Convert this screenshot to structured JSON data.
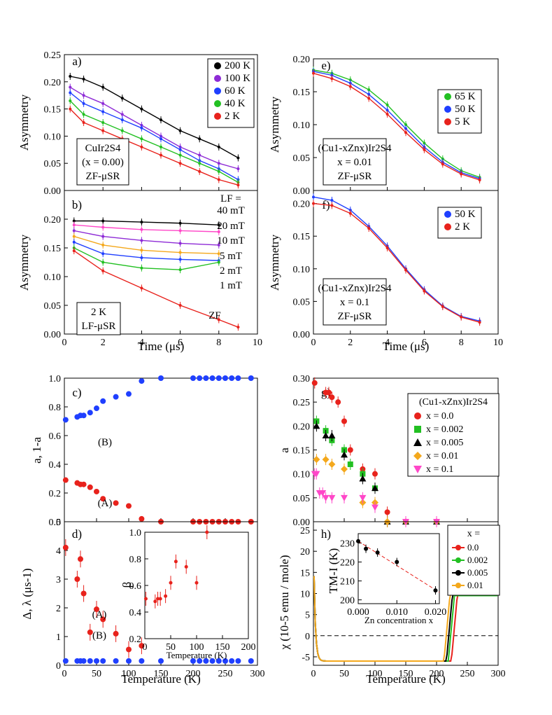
{
  "chart_data": [
    {
      "panel": "a",
      "type": "scatter",
      "xlabel": "",
      "ylabel": "Asymmetry",
      "xlim": [
        0,
        10
      ],
      "ylim": [
        0,
        0.25
      ],
      "xticks": [
        0,
        2,
        4,
        6,
        8,
        10
      ],
      "yticks": [
        0.0,
        0.05,
        0.1,
        0.15,
        0.2,
        0.25
      ],
      "annotation": [
        "CuIr2S4",
        "(x = 0.00)",
        "ZF-μSR"
      ],
      "legend_position": "top-right",
      "series": [
        {
          "name": "200 K",
          "color": "#000000",
          "x": [
            0.3,
            1,
            2,
            3,
            4,
            5,
            6,
            7,
            8,
            9
          ],
          "y": [
            0.21,
            0.205,
            0.19,
            0.17,
            0.15,
            0.13,
            0.11,
            0.095,
            0.08,
            0.06
          ]
        },
        {
          "name": "100 K",
          "color": "#8e2bd6",
          "x": [
            0.3,
            1,
            2,
            3,
            4,
            5,
            6,
            7,
            8,
            9
          ],
          "y": [
            0.19,
            0.175,
            0.16,
            0.14,
            0.12,
            0.1,
            0.08,
            0.065,
            0.05,
            0.04
          ]
        },
        {
          "name": "60 K",
          "color": "#1f3fff",
          "x": [
            0.3,
            1,
            2,
            3,
            4,
            5,
            6,
            7,
            8,
            9
          ],
          "y": [
            0.18,
            0.16,
            0.145,
            0.13,
            0.115,
            0.095,
            0.075,
            0.055,
            0.04,
            0.02
          ]
        },
        {
          "name": "40 K",
          "color": "#22c022",
          "x": [
            0.3,
            1,
            2,
            3,
            4,
            5,
            6,
            7,
            8,
            9
          ],
          "y": [
            0.165,
            0.14,
            0.125,
            0.11,
            0.095,
            0.08,
            0.065,
            0.05,
            0.035,
            0.015
          ]
        },
        {
          "name": "2 K",
          "color": "#e8221c",
          "x": [
            0.3,
            1,
            2,
            3,
            4,
            5,
            6,
            7,
            8,
            9
          ],
          "y": [
            0.15,
            0.125,
            0.11,
            0.095,
            0.08,
            0.065,
            0.05,
            0.035,
            0.02,
            0.01
          ]
        }
      ]
    },
    {
      "panel": "b",
      "type": "scatter",
      "xlabel": "Time (μs)",
      "ylabel": "Asymmetry",
      "xlim": [
        0,
        10
      ],
      "ylim": [
        0,
        0.25
      ],
      "xticks": [
        0,
        2,
        4,
        6,
        8,
        10
      ],
      "yticks": [
        0.0,
        0.05,
        0.1,
        0.15,
        0.2
      ],
      "annotation": [
        "2 K",
        "LF-μSR"
      ],
      "series": [
        {
          "name": "40 mT",
          "color": "#000000",
          "x": [
            0.5,
            2,
            4,
            6,
            8
          ],
          "y": [
            0.197,
            0.197,
            0.195,
            0.193,
            0.19
          ]
        },
        {
          "name": "20 mT",
          "color": "#ff47c8",
          "x": [
            0.5,
            2,
            4,
            6,
            8
          ],
          "y": [
            0.19,
            0.186,
            0.182,
            0.18,
            0.178
          ]
        },
        {
          "name": "10 mT",
          "color": "#8e2bd6",
          "x": [
            0.5,
            2,
            4,
            6,
            8
          ],
          "y": [
            0.18,
            0.17,
            0.163,
            0.158,
            0.155
          ]
        },
        {
          "name": "5 mT",
          "color": "#f4a81c",
          "x": [
            0.5,
            2,
            4,
            6,
            8
          ],
          "y": [
            0.17,
            0.155,
            0.146,
            0.142,
            0.14
          ]
        },
        {
          "name": "2 mT",
          "color": "#1f3fff",
          "x": [
            0.5,
            2,
            4,
            6,
            8
          ],
          "y": [
            0.16,
            0.14,
            0.133,
            0.13,
            0.128
          ]
        },
        {
          "name": "1 mT",
          "color": "#22c022",
          "x": [
            0.5,
            2,
            4,
            6,
            8
          ],
          "y": [
            0.15,
            0.125,
            0.115,
            0.112,
            0.125
          ]
        },
        {
          "name": "ZF",
          "color": "#e8221c",
          "x": [
            0.5,
            2,
            4,
            6,
            8,
            9
          ],
          "y": [
            0.145,
            0.11,
            0.08,
            0.05,
            0.025,
            0.012
          ]
        }
      ],
      "labels": [
        "LF =",
        "40 mT",
        "20 mT",
        "10 mT",
        "5 mT",
        "2 mT",
        "1 mT",
        "ZF"
      ]
    },
    {
      "panel": "e",
      "type": "scatter",
      "xlabel": "",
      "ylabel": "Asymmetry",
      "xlim": [
        0,
        10
      ],
      "ylim": [
        0,
        0.2
      ],
      "xticks": [
        0,
        2,
        4,
        6,
        8,
        10
      ],
      "yticks": [
        0.0,
        0.05,
        0.1,
        0.15,
        0.2
      ],
      "annotation": [
        "(Cu1-xZnx)Ir2S4",
        "x = 0.01",
        "ZF-μSR"
      ],
      "series": [
        {
          "name": "65 K",
          "color": "#22c022",
          "x": [
            0,
            1,
            2,
            3,
            4,
            5,
            6,
            7,
            8,
            9
          ],
          "y": [
            0.183,
            0.178,
            0.168,
            0.153,
            0.13,
            0.1,
            0.072,
            0.048,
            0.03,
            0.02
          ]
        },
        {
          "name": "50 K",
          "color": "#1f3fff",
          "x": [
            0,
            1,
            2,
            3,
            4,
            5,
            6,
            7,
            8,
            9
          ],
          "y": [
            0.181,
            0.175,
            0.163,
            0.146,
            0.122,
            0.094,
            0.066,
            0.043,
            0.027,
            0.018
          ]
        },
        {
          "name": "5 K",
          "color": "#e8221c",
          "x": [
            0,
            1,
            2,
            3,
            4,
            5,
            6,
            7,
            8,
            9
          ],
          "y": [
            0.178,
            0.17,
            0.158,
            0.14,
            0.116,
            0.088,
            0.062,
            0.04,
            0.025,
            0.016
          ]
        }
      ]
    },
    {
      "panel": "f",
      "type": "scatter",
      "xlabel": "Time (μs)",
      "ylabel": "Asymmetry",
      "xlim": [
        0,
        10
      ],
      "ylim": [
        0,
        0.22
      ],
      "xticks": [
        0,
        2,
        4,
        6,
        8,
        10
      ],
      "yticks": [
        0.0,
        0.05,
        0.1,
        0.15,
        0.2
      ],
      "annotation": [
        "(Cu1-xZnx)Ir2S4",
        "x = 0.1",
        "ZF-μSR"
      ],
      "series": [
        {
          "name": "50 K",
          "color": "#1f3fff",
          "x": [
            0,
            1,
            2,
            3,
            4,
            5,
            6,
            7,
            8,
            9
          ],
          "y": [
            0.21,
            0.205,
            0.19,
            0.165,
            0.135,
            0.1,
            0.068,
            0.043,
            0.027,
            0.02
          ]
        },
        {
          "name": "2 K",
          "color": "#e8221c",
          "x": [
            0,
            1,
            2,
            3,
            4,
            5,
            6,
            7,
            8,
            9
          ],
          "y": [
            0.2,
            0.197,
            0.185,
            0.162,
            0.132,
            0.098,
            0.066,
            0.042,
            0.026,
            0.018
          ]
        }
      ]
    },
    {
      "panel": "c",
      "type": "scatter",
      "xlabel": "",
      "ylabel": "a, 1-a",
      "xlim": [
        0,
        300
      ],
      "ylim": [
        0,
        1.0
      ],
      "xticks": [
        0,
        50,
        100,
        150,
        200,
        250,
        300
      ],
      "yticks": [
        0.0,
        0.2,
        0.4,
        0.6,
        0.8,
        1.0
      ],
      "series": [
        {
          "name": "(B)",
          "color": "#1f3fff",
          "x": [
            2,
            20,
            25,
            30,
            40,
            50,
            60,
            80,
            100,
            120,
            150,
            200,
            210,
            220,
            230,
            240,
            250,
            260,
            270,
            290
          ],
          "y": [
            0.71,
            0.73,
            0.74,
            0.74,
            0.76,
            0.79,
            0.84,
            0.87,
            0.89,
            0.98,
            1.0,
            1.0,
            1.0,
            1.0,
            1.0,
            1.0,
            1.0,
            1.0,
            1.0,
            1.0
          ]
        },
        {
          "name": "(A)",
          "color": "#e8221c",
          "x": [
            2,
            20,
            25,
            30,
            40,
            50,
            60,
            80,
            100,
            120,
            150,
            200,
            210,
            220,
            230,
            240,
            250,
            260,
            270,
            290
          ],
          "y": [
            0.29,
            0.27,
            0.26,
            0.26,
            0.24,
            0.21,
            0.16,
            0.13,
            0.11,
            0.02,
            0.0,
            0.0,
            0.0,
            0.0,
            0.0,
            0.0,
            0.0,
            0.0,
            0.0,
            0.0
          ]
        }
      ]
    },
    {
      "panel": "d",
      "type": "scatter",
      "xlabel": "Temperature (K)",
      "ylabel": "Δ, λ (μs-1)",
      "xlim": [
        0,
        300
      ],
      "ylim": [
        0,
        5
      ],
      "xticks": [
        0,
        50,
        100,
        150,
        200,
        250,
        300
      ],
      "yticks": [
        0,
        1,
        2,
        3,
        4,
        5
      ],
      "series": [
        {
          "name": "(A)",
          "color": "#e8221c",
          "x": [
            2,
            20,
            25,
            30,
            40,
            50,
            60,
            80,
            100,
            120
          ],
          "y": [
            4.1,
            3.0,
            3.7,
            2.5,
            1.15,
            1.95,
            1.6,
            1.1,
            0.55,
            0.68
          ]
        },
        {
          "name": "(B)",
          "color": "#1f3fff",
          "x": [
            2,
            20,
            25,
            30,
            40,
            50,
            60,
            80,
            100,
            120,
            150,
            200,
            210,
            220,
            230,
            240,
            250,
            260,
            270,
            290
          ],
          "y": [
            0.15,
            0.15,
            0.15,
            0.15,
            0.15,
            0.15,
            0.15,
            0.15,
            0.15,
            0.15,
            0.15,
            0.15,
            0.15,
            0.15,
            0.15,
            0.15,
            0.15,
            0.15,
            0.15,
            0.15
          ]
        }
      ],
      "inset": {
        "xlabel": "Temperature (K)",
        "ylabel": "β",
        "xlim": [
          0,
          200
        ],
        "ylim": [
          0.2,
          1.0
        ],
        "xticks": [
          0,
          50,
          100,
          150,
          200
        ],
        "yticks": [
          0.2,
          0.4,
          0.6,
          0.8,
          1.0
        ],
        "x": [
          2,
          20,
          25,
          30,
          40,
          50,
          60,
          80,
          100,
          120
        ],
        "y": [
          0.5,
          0.48,
          0.5,
          0.5,
          0.52,
          0.62,
          0.78,
          0.74,
          0.62,
          1.0
        ]
      }
    },
    {
      "panel": "g",
      "type": "scatter",
      "xlabel": "",
      "ylabel": "a",
      "xlim": [
        0,
        300
      ],
      "ylim": [
        0,
        0.3
      ],
      "xticks": [
        0,
        50,
        100,
        150,
        200,
        250,
        300
      ],
      "yticks": [
        0.0,
        0.05,
        0.1,
        0.15,
        0.2,
        0.25,
        0.3
      ],
      "legend_title": "(Cu1-xZnx)Ir2S4",
      "series": [
        {
          "name": "x = 0.0",
          "color": "#e8221c",
          "marker": "circle",
          "x": [
            2,
            20,
            25,
            30,
            40,
            50,
            60,
            80,
            100,
            120
          ],
          "y": [
            0.29,
            0.27,
            0.27,
            0.26,
            0.25,
            0.21,
            0.15,
            0.11,
            0.1,
            0.02
          ]
        },
        {
          "name": "x = 0.002",
          "color": "#22c022",
          "marker": "square",
          "x": [
            5,
            20,
            30,
            50,
            60,
            80,
            100,
            150,
            200
          ],
          "y": [
            0.21,
            0.19,
            0.17,
            0.15,
            0.12,
            0.1,
            0.07,
            0.0,
            0.0
          ]
        },
        {
          "name": "x = 0.005",
          "color": "#000000",
          "marker": "triangle-up",
          "x": [
            5,
            20,
            30,
            50,
            80,
            100,
            120,
            150,
            200
          ],
          "y": [
            0.2,
            0.18,
            0.18,
            0.14,
            0.09,
            0.07,
            0.0,
            0.0,
            0.0
          ]
        },
        {
          "name": "x = 0.01",
          "color": "#f4a81c",
          "marker": "diamond",
          "x": [
            5,
            20,
            30,
            50,
            80,
            100,
            120,
            150,
            200
          ],
          "y": [
            0.13,
            0.13,
            0.12,
            0.11,
            0.04,
            0.04,
            0.0,
            0.0,
            0.0
          ]
        },
        {
          "name": "x = 0.1",
          "color": "#ff47c8",
          "marker": "triangle-down",
          "x": [
            2,
            5,
            10,
            15,
            20,
            30,
            50,
            80,
            100,
            150,
            200
          ],
          "y": [
            0.1,
            0.1,
            0.06,
            0.06,
            0.05,
            0.05,
            0.05,
            0.05,
            0.03,
            0.0,
            0.0
          ]
        }
      ]
    },
    {
      "panel": "h",
      "type": "line",
      "xlabel": "Temperature (K)",
      "ylabel": "χ (10-5 emu / mole)",
      "xlim": [
        0,
        300
      ],
      "ylim": [
        -7,
        27
      ],
      "xticks": [
        0,
        50,
        100,
        150,
        200,
        250,
        300
      ],
      "yticks": [
        -5,
        0,
        5,
        10,
        15,
        20,
        25
      ],
      "legend_title": "x =",
      "series": [
        {
          "name": "0.0",
          "color": "#e8221c",
          "transition": 232,
          "low": -6.0,
          "high": 10.0
        },
        {
          "name": "0.002",
          "color": "#22c022",
          "transition": 227,
          "low": -6.0,
          "high": 9.5
        },
        {
          "name": "0.005",
          "color": "#000000",
          "transition": 224,
          "low": -6.0,
          "high": 10.0
        },
        {
          "name": "0.01",
          "color": "#f4a81c",
          "transition": 220,
          "low": -6.0,
          "high": 10.0
        }
      ],
      "inset": {
        "xlabel": "Zn concentration x",
        "ylabel": "TM-I (K)",
        "xlim": [
          0,
          0.021
        ],
        "ylim": [
          198,
          235
        ],
        "xticks": [
          0.0,
          0.01,
          0.02
        ],
        "yticks": [
          200,
          210,
          220,
          230
        ],
        "x": [
          0.0,
          0.002,
          0.005,
          0.01,
          0.02
        ],
        "y": [
          231,
          227,
          225,
          220,
          205
        ]
      }
    }
  ],
  "panel_labels": {
    "a": "a)",
    "b": "b)",
    "c": "c)",
    "d": "d)",
    "e": "e)",
    "f": "f)",
    "g": "g)",
    "h": "h)"
  },
  "text_labels": {
    "A": "(A)",
    "B": "(B)"
  }
}
